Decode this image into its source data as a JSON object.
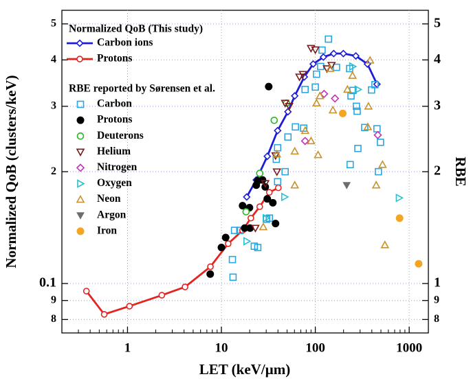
{
  "chart_data": {
    "type": "scatter",
    "x_label": "LET (keV/µm)",
    "y_label": "Normalized QoB (clusters/keV)",
    "y2_label": "RBE",
    "log_x": true,
    "log_y": true,
    "grid": true,
    "legend_titles": [
      "Normalized QoB (This study)",
      "RBE reported by Sørensen et al."
    ],
    "xlim": [
      0.2,
      1600
    ],
    "xticks": [
      1,
      10,
      100,
      1000
    ],
    "ylim": [
      0.0736,
      0.544
    ],
    "yticks": [
      {
        "value": 0.08,
        "label": "8"
      },
      {
        "value": 0.09,
        "label": "9"
      },
      0.1,
      {
        "value": 0.2,
        "label": "2"
      },
      {
        "value": 0.3,
        "label": "3"
      },
      {
        "value": 0.4,
        "label": "4"
      },
      {
        "value": 0.5,
        "label": "5"
      }
    ],
    "y2lim": [
      0.736,
      5.44
    ],
    "y2ticks": [
      {
        "value": 0.8,
        "label": "8"
      },
      {
        "value": 0.9,
        "label": "9"
      },
      1,
      2,
      3,
      4,
      5
    ],
    "series": [
      {
        "name": "Carbon ions",
        "color": "#1c1cd8",
        "marker": "diamond",
        "line": true,
        "x": [
          18.6,
          23.5,
          30.8,
          39.7,
          51.1,
          60.4,
          76.4,
          95,
          122,
          157,
          199,
          270,
          359,
          454
        ],
        "values": [
          0.171,
          0.19,
          0.22,
          0.258,
          0.29,
          0.32,
          0.36,
          0.39,
          0.407,
          0.416,
          0.416,
          0.41,
          0.39,
          0.344
        ]
      },
      {
        "name": "Protons",
        "color": "#e52420",
        "marker": "circle",
        "line": true,
        "x": [
          0.365,
          0.565,
          1.05,
          2.32,
          4.1,
          7.64,
          11.8,
          16.8,
          20.6,
          25.6,
          32.4,
          40.4
        ],
        "values": [
          0.0954,
          0.0826,
          0.0869,
          0.093,
          0.0979,
          0.111,
          0.128,
          0.139,
          0.15,
          0.161,
          0.176,
          0.181
        ]
      },
      {
        "name": "Carbon",
        "color": "#29a6e0",
        "marker": "square",
        "axis": "y2",
        "x": [
          13.3,
          13.1,
          13.8,
          15.7,
          22.4,
          24.4,
          30.3,
          32.4,
          39.7,
          38.4,
          39.7,
          47.7,
          51.1,
          61.4,
          75.2,
          77.8,
          100,
          103,
          114,
          118,
          138,
          168,
          232,
          240,
          252,
          274,
          279,
          397,
          432,
          454,
          336,
          284,
          235,
          470,
          494
        ],
        "values": [
          1.04,
          1.16,
          1.39,
          1.39,
          1.26,
          1.25,
          1.49,
          1.5,
          1.88,
          2.16,
          2.32,
          2.0,
          2.48,
          2.64,
          2.62,
          3.33,
          3.38,
          3.66,
          3.84,
          4.25,
          4.55,
          3.82,
          3.79,
          3.2,
          3.31,
          3.0,
          2.91,
          3.32,
          3.43,
          2.61,
          2.63,
          2.31,
          2.09,
          2.0,
          2.4
        ]
      },
      {
        "name": "Protons",
        "color": "#000000",
        "marker": "dot",
        "axis": "y2",
        "x": [
          7.6,
          10,
          11.1,
          16.8,
          19.9,
          17.7,
          20.2,
          24.4,
          27.4,
          23.5,
          29.3,
          30.8,
          35.3,
          37.7,
          31.9
        ],
        "values": [
          1.06,
          1.25,
          1.33,
          1.62,
          1.6,
          1.41,
          1.41,
          1.89,
          1.9,
          1.84,
          1.82,
          1.69,
          1.65,
          1.45,
          3.39
        ]
      },
      {
        "name": "Deuterons",
        "color": "#27b527",
        "marker": "circle",
        "axis": "y2",
        "x": [
          18.3,
          25.6,
          36.5,
          49.4
        ],
        "values": [
          1.56,
          1.98,
          2.75,
          3.06
        ]
      },
      {
        "name": "Helium",
        "color": "#7b1a1a",
        "marker": "tri-down",
        "axis": "y2",
        "x": [
          23,
          29.3,
          37.7,
          39,
          47.7,
          52.7,
          67.8,
          73.8,
          90,
          100,
          133,
          149
        ],
        "values": [
          1.41,
          1.86,
          2.21,
          2.0,
          3.06,
          3.0,
          3.6,
          3.66,
          4.3,
          4.26,
          3.79,
          3.87
        ]
      },
      {
        "name": "Nitrogen",
        "color": "#c530b5",
        "marker": "diamond",
        "axis": "y2",
        "x": [
          77.8,
          124,
          162,
          463
        ],
        "values": [
          2.42,
          3.24,
          3.15,
          2.51
        ]
      },
      {
        "name": "Oxygen",
        "color": "#28c0d0",
        "marker": "tri-right",
        "axis": "y2",
        "x": [
          18.6,
          29.8,
          47,
          249,
          284,
          780
        ],
        "values": [
          1.3,
          1.5,
          1.71,
          3.84,
          3.33,
          1.7
        ]
      },
      {
        "name": "Neon",
        "color": "#c8922c",
        "marker": "tri-up",
        "axis": "y2",
        "x": [
          27.9,
          39,
          60.4,
          60.4,
          78,
          90,
          103,
          107,
          112,
          144,
          154,
          220,
          249,
          383,
          368,
          362,
          445,
          520,
          551
        ],
        "values": [
          1.42,
          2.23,
          2.27,
          1.84,
          2.58,
          2.42,
          3.06,
          2.22,
          3.2,
          3.79,
          2.93,
          3.33,
          3.63,
          3.99,
          3.0,
          2.64,
          1.84,
          2.09,
          1.27
        ]
      },
      {
        "name": "Argon",
        "color": "#6d6d6d",
        "marker": "tri-down-filled",
        "axis": "y2",
        "x": [
          216
        ],
        "values": [
          1.84
        ]
      },
      {
        "name": "Iron",
        "color": "#f4a623",
        "marker": "dot",
        "axis": "y2",
        "x": [
          196,
          790,
          1260
        ],
        "values": [
          2.87,
          1.5,
          1.13
        ]
      }
    ]
  }
}
